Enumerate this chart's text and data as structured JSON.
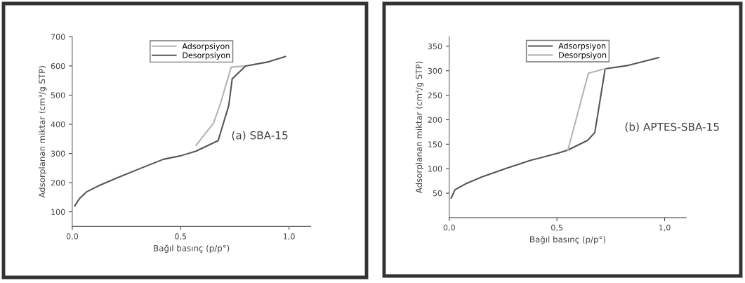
{
  "chart_data": [
    {
      "type": "line",
      "xlabel": "Bağıl basınç (p/p°)",
      "ylabel": "Adsorplanan miktar (cm³/g STP)",
      "xlim": [
        0,
        1.1
      ],
      "xticks": [
        {
          "value": 0,
          "label": "0,0"
        },
        {
          "value": 0.5,
          "label": "0,5"
        },
        {
          "value": 1.0,
          "label": "1,0"
        }
      ],
      "ylim": [
        50,
        700
      ],
      "yticks": [
        100,
        200,
        300,
        400,
        500,
        600,
        700
      ],
      "legend": "top",
      "grid": false,
      "annotations": [
        "(a) SBA-15"
      ],
      "series": [
        {
          "name": "Adsorpsiyon",
          "color": "#b4b4b4",
          "x": [
            0.571,
            0.652,
            0.684,
            0.733,
            0.8
          ],
          "values": [
            328,
            404,
            472,
            596,
            600
          ]
        },
        {
          "name": "Desorpsiyon",
          "color": "#555555",
          "x": [
            0.011,
            0.032,
            0.065,
            0.118,
            0.205,
            0.312,
            0.42,
            0.5,
            0.571,
            0.673,
            0.722,
            0.738,
            0.8,
            0.905,
            0.983
          ],
          "values": [
            120,
            144,
            168,
            188,
            216,
            248,
            280,
            292,
            308,
            344,
            464,
            556,
            600,
            614,
            632
          ]
        }
      ]
    },
    {
      "type": "line",
      "xlabel": "Bağıl basınç (p/p°)",
      "ylabel": "Adsorplanan miktar (cm³/g STP)",
      "xlim": [
        0,
        1.1
      ],
      "xticks": [
        {
          "value": 0,
          "label": "0,0"
        },
        {
          "value": 0.5,
          "label": "0,5"
        },
        {
          "value": 1.0,
          "label": "1,0"
        }
      ],
      "ylim": [
        0,
        370
      ],
      "yticks": [
        50,
        100,
        150,
        200,
        250,
        300,
        350
      ],
      "legend": "top",
      "grid": false,
      "annotations": [
        "(b) APTES-SBA-15"
      ],
      "series": [
        {
          "name": "Adsorpsiyon",
          "color": "#555555",
          "x": [
            0.009,
            0.027,
            0.076,
            0.151,
            0.26,
            0.378,
            0.5,
            0.551,
            0.643,
            0.676,
            0.724,
            0.832,
            0.973
          ],
          "values": [
            40,
            57,
            69,
            83,
            100,
            117,
            131,
            138,
            158,
            174,
            304,
            311,
            327
          ]
        },
        {
          "name": "Desorpsiyon",
          "color": "#b4b4b4",
          "x": [
            0.551,
            0.646,
            0.724
          ],
          "values": [
            138,
            295,
            304
          ]
        }
      ]
    }
  ]
}
